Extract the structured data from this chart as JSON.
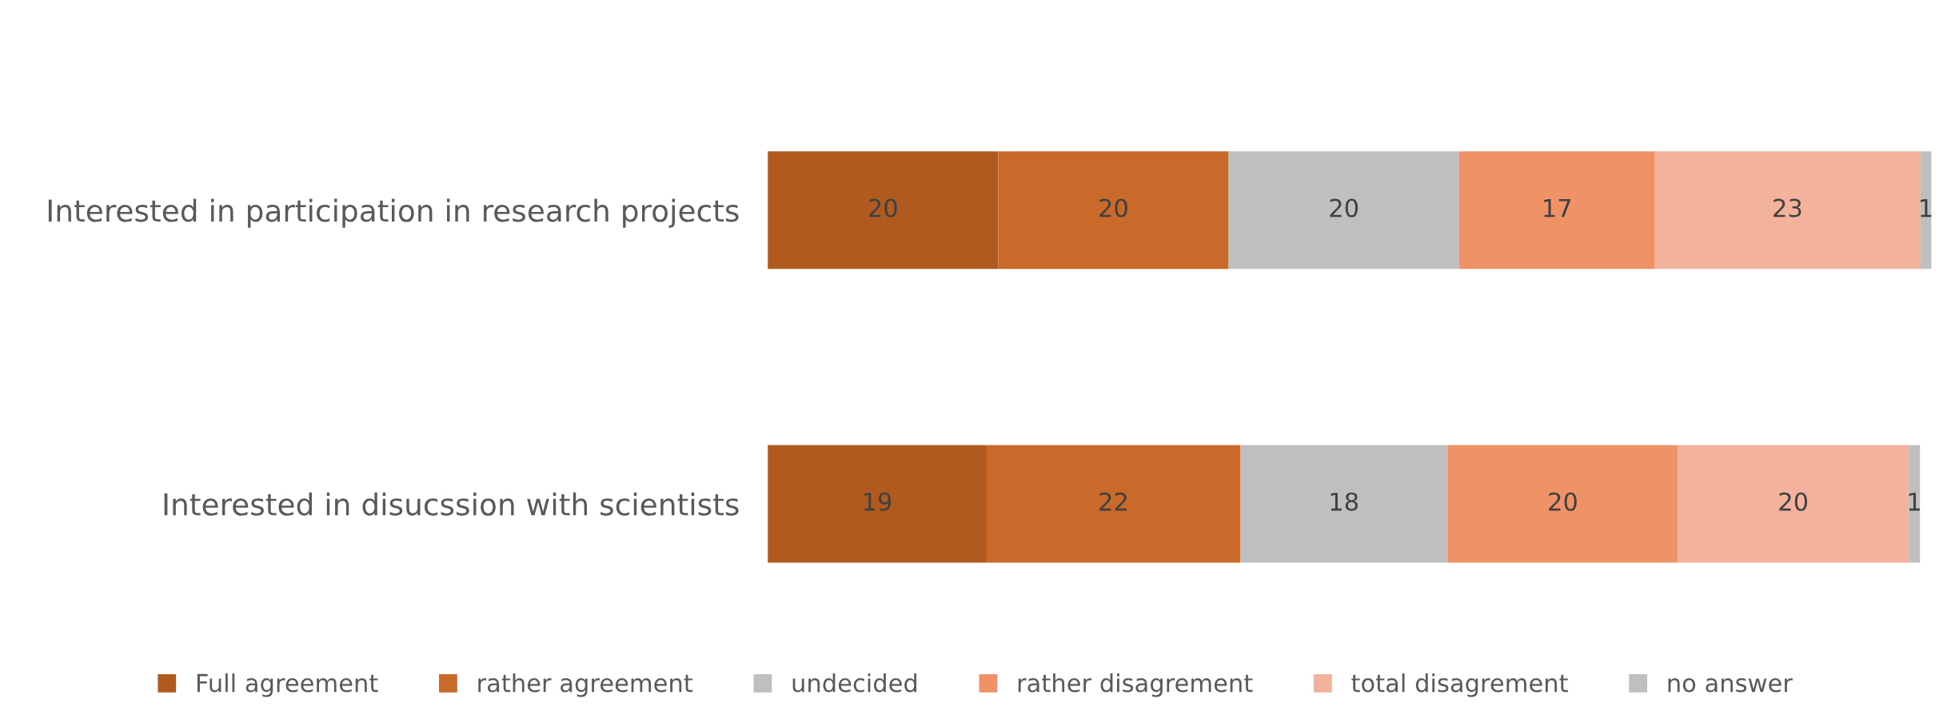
{
  "chart_data": {
    "type": "bar",
    "orientation": "horizontal",
    "stacked": true,
    "data_labels": true,
    "legend": "bottom",
    "grid": false,
    "categories": [
      "Interested in participation in research projects",
      "Interested in disucssion with scientists"
    ],
    "series": [
      {
        "name": "Full agreement",
        "color": "#b05a1f",
        "values": [
          20,
          19
        ]
      },
      {
        "name": "rather agreement",
        "color": "#c9692a",
        "values": [
          20,
          22
        ]
      },
      {
        "name": "undecided",
        "color": "#bfbfbf",
        "values": [
          20,
          18
        ]
      },
      {
        "name": "rather disagrement",
        "color": "#ef9366",
        "values": [
          17,
          20
        ]
      },
      {
        "name": "total disagrement",
        "color": "#f2b29b",
        "values": [
          23,
          20
        ]
      },
      {
        "name": "no answer",
        "color": "#bfbfbf",
        "values": [
          1,
          1
        ]
      }
    ]
  }
}
